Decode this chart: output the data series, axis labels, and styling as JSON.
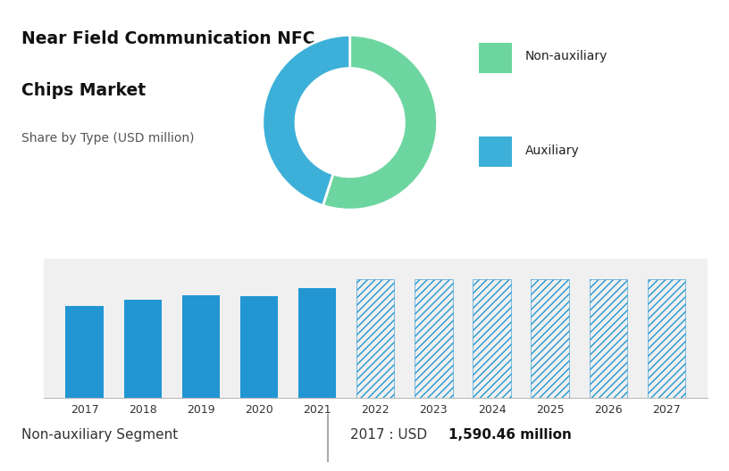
{
  "title_line1": "Near Field Communication NFC",
  "title_line2": "Chips Market",
  "subtitle": "Share by Type (USD million)",
  "donut_values": [
    55,
    45
  ],
  "donut_colors": [
    "#3cb0d8",
    "#6dd6a0"
  ],
  "legend_labels": [
    "Non-auxiliary",
    "Auxiliary"
  ],
  "legend_colors": [
    "#6dd6a0",
    "#3cb0d8"
  ],
  "bar_years_solid": [
    2017,
    2018,
    2019,
    2020,
    2021
  ],
  "bar_values_solid": [
    1590,
    1700,
    1780,
    1760,
    1900
  ],
  "bar_years_hatched": [
    2022,
    2023,
    2024,
    2025,
    2026,
    2027
  ],
  "bar_values_hatched": [
    2050,
    2050,
    2050,
    2050,
    2050,
    2050
  ],
  "bar_color_solid": "#2196d3",
  "bar_color_hatched": "#2196d3",
  "top_bg_color": "#c8cfe0",
  "bottom_bg_color": "#f0f0f0",
  "footer_label": "Non-auxiliary Segment",
  "footer_value": "2017 : USD ",
  "footer_bold": "1,590.46 million"
}
